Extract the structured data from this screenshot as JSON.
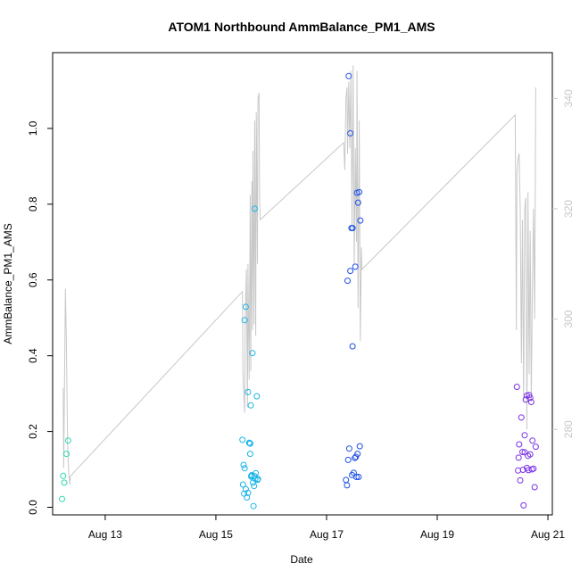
{
  "chart_data": {
    "type": "scatter",
    "title": "ATOM1 Northbound AmmBalance_PM1_AMS",
    "xlabel": "Date",
    "ylabel": "AmmBalance_PM1_AMS",
    "x_ticks": [
      "Aug 13",
      "Aug 15",
      "Aug 17",
      "Aug 19",
      "Aug 21"
    ],
    "x_tick_days": [
      13,
      15,
      17,
      19,
      21
    ],
    "xlim": [
      12.05,
      21.08
    ],
    "y_ticks": [
      0.0,
      0.2,
      0.4,
      0.6,
      0.8,
      1.0
    ],
    "y_tick_labels": [
      "0.0",
      "0.2",
      "0.4",
      "0.6",
      "0.8",
      "1.0"
    ],
    "ylim": [
      -0.02,
      1.2
    ],
    "y2_ticks": [
      280,
      300,
      320,
      340
    ],
    "y2_tick_labels": [
      "280",
      "300",
      "320",
      "340"
    ],
    "y2lim": [
      264.5,
      348.3
    ],
    "grid": false,
    "legend": "none",
    "colors": {
      "points_aug12": "#2ed8b0",
      "points_aug15": "#1ab4e6",
      "points_aug17": "#1e50e6",
      "points_aug20": "#7a32e6",
      "secondary_line": "#c8c8c8"
    },
    "series": [
      {
        "color": "#2ed8b0",
        "x": [
          12.22,
          12.24,
          12.26,
          12.3
        ],
        "y": [
          0.022,
          0.083,
          0.065,
          0.141
        ]
      },
      {
        "color": "#2ed8b0",
        "x": [
          12.33
        ],
        "y": [
          0.176
        ]
      },
      {
        "color": "#1ab4e6",
        "x": [
          15.48,
          15.5,
          15.52,
          15.54,
          15.56,
          15.58,
          15.6,
          15.62,
          15.64,
          15.65,
          15.66,
          15.67,
          15.68,
          15.69,
          15.7,
          15.71,
          15.72,
          15.74,
          15.75,
          15.62,
          15.49,
          15.54,
          15.58,
          15.63,
          15.7,
          15.64,
          15.76,
          15.52,
          15.51,
          15.61
        ],
        "y": [
          0.178,
          0.112,
          0.103,
          0.048,
          0.026,
          0.304,
          0.17,
          0.141,
          0.081,
          0.085,
          0.407,
          0.065,
          0.003,
          0.056,
          0.788,
          0.075,
          0.09,
          0.293,
          0.072,
          0.168,
          0.06,
          0.529,
          0.038,
          0.269,
          0.082,
          0.083,
          0.075,
          0.494,
          0.036,
          0.17
        ]
      },
      {
        "color": "#1e50e6",
        "x": [
          17.35,
          17.37,
          17.39,
          17.41,
          17.43,
          17.45,
          17.47,
          17.49,
          17.51,
          17.53,
          17.55,
          17.57,
          17.59,
          17.61,
          17.4,
          17.43,
          17.47,
          17.52,
          17.56,
          17.6,
          17.38,
          17.46,
          17.54,
          17.58
        ],
        "y": [
          0.072,
          0.058,
          0.125,
          0.155,
          0.987,
          0.737,
          0.425,
          0.091,
          0.13,
          0.133,
          0.83,
          0.804,
          0.832,
          0.757,
          1.138,
          0.624,
          0.737,
          0.635,
          0.141,
          0.161,
          0.598,
          0.085,
          0.08,
          0.08
        ]
      },
      {
        "color": "#7a32e6",
        "x": [
          20.44,
          20.46,
          20.48,
          20.5,
          20.52,
          20.54,
          20.56,
          20.58,
          20.6,
          20.62,
          20.64,
          20.66,
          20.68,
          20.7,
          20.72,
          20.74,
          20.76,
          20.78,
          20.55,
          20.62,
          20.68,
          20.71,
          20.58,
          20.47,
          20.65
        ],
        "y": [
          0.318,
          0.097,
          0.166,
          0.071,
          0.237,
          0.146,
          0.005,
          0.19,
          0.284,
          0.295,
          0.136,
          0.296,
          0.14,
          0.278,
          0.176,
          0.102,
          0.053,
          0.16,
          0.099,
          0.104,
          0.289,
          0.1,
          0.145,
          0.131,
          0.098
        ]
      }
    ],
    "secondary_line": {
      "axis": "right",
      "x": [
        12.24,
        12.25,
        12.28,
        12.3,
        12.32,
        12.34,
        12.36,
        12.37,
        15.48,
        15.49,
        15.5,
        15.52,
        15.53,
        15.55,
        15.57,
        15.58,
        15.6,
        15.62,
        15.63,
        15.65,
        15.66,
        15.67,
        15.69,
        15.7,
        15.72,
        15.73,
        15.75,
        15.76,
        15.78,
        15.79,
        15.8,
        17.31,
        17.33,
        17.35,
        17.37,
        17.38,
        17.4,
        17.42,
        17.44,
        17.46,
        17.48,
        17.5,
        17.52,
        17.54,
        17.55,
        17.57,
        17.59,
        17.61,
        17.63,
        17.64,
        20.41,
        20.43,
        20.44,
        20.46,
        20.48,
        20.5,
        20.52,
        20.54,
        20.56,
        20.58,
        20.6,
        20.62,
        20.64,
        20.66,
        20.68,
        20.7,
        20.72,
        20.74,
        20.76,
        20.78
      ],
      "y": [
        287.5,
        273.0,
        305.5,
        295.0,
        277.5,
        272.0,
        270.0,
        271.5,
        305.0,
        290.0,
        287.0,
        283.0,
        300.0,
        309.0,
        284.0,
        310.0,
        289.0,
        322.5,
        290.5,
        325.0,
        298.0,
        330.5,
        299.0,
        336.0,
        297.0,
        337.5,
        310.0,
        340.0,
        341.0,
        322.0,
        318.0,
        332.0,
        327.0,
        340.0,
        342.0,
        330.0,
        343.0,
        331.0,
        345.0,
        316.0,
        346.0,
        310.0,
        331.0,
        314.0,
        345.0,
        302.0,
        336.0,
        296.0,
        313.0,
        309.0,
        337.0,
        298.0,
        326.5,
        329.0,
        330.0,
        320.0,
        292.0,
        318.0,
        285.0,
        320.0,
        322.0,
        280.0,
        323.0,
        290.0,
        316.0,
        285.0,
        307.0,
        320.0,
        300.0,
        342.0
      ]
    }
  }
}
